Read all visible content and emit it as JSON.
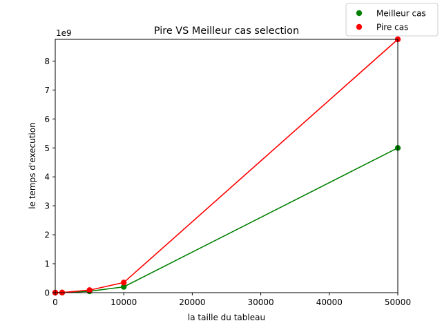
{
  "chart_data": {
    "type": "line",
    "title": "Pire VS Meilleur cas selection",
    "xlabel": "la taille du tableau",
    "ylabel": "le temps d'execution",
    "y_offset_label": "1e9",
    "xlim": [
      0,
      50000
    ],
    "ylim": [
      0,
      8.75
    ],
    "y_scale_multiplier": 1000000000,
    "x_ticks": [
      0,
      10000,
      20000,
      30000,
      40000,
      50000
    ],
    "x_tick_labels": [
      "0",
      "10000",
      "20000",
      "30000",
      "40000",
      "50000"
    ],
    "y_ticks": [
      0,
      1,
      2,
      3,
      4,
      5,
      6,
      7,
      8
    ],
    "y_tick_labels": [
      "0",
      "1",
      "2",
      "3",
      "4",
      "5",
      "6",
      "7",
      "8"
    ],
    "grid": false,
    "legend_position": "top-right, outside plot area",
    "series": [
      {
        "name": "Meilleur cas",
        "color": "#008000",
        "x": [
          0,
          1000,
          5000,
          10000,
          50000
        ],
        "values": [
          0,
          0.002,
          0.05,
          0.2,
          5.0
        ]
      },
      {
        "name": "Pire cas",
        "color": "#ff0000",
        "x": [
          0,
          1000,
          5000,
          10000,
          50000
        ],
        "values": [
          0,
          0.004,
          0.087,
          0.35,
          8.75
        ]
      }
    ]
  }
}
